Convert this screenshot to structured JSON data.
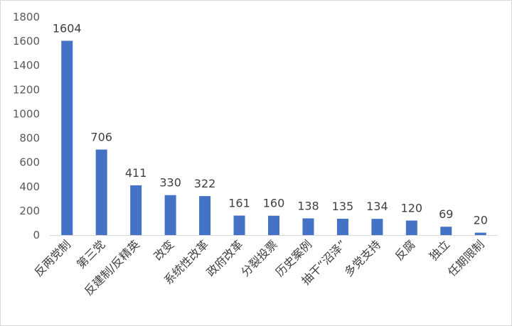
{
  "chart_data": {
    "type": "bar",
    "title": "",
    "xlabel": "",
    "ylabel": "",
    "ylim": [
      0,
      1800
    ],
    "yticks": [
      0,
      200,
      400,
      600,
      800,
      1000,
      1200,
      1400,
      1600,
      1800
    ],
    "grid": false,
    "legend": "none",
    "bar_color": "#4472c4",
    "categories": [
      "反两党制",
      "第三党",
      "反建制/反精英",
      "改变",
      "系统性改革",
      "政府改革",
      "分裂投票",
      "历史案例",
      "抽干“沼泽”",
      "多党支持",
      "反腐",
      "独立",
      "任期限制"
    ],
    "values": [
      1604,
      706,
      411,
      330,
      322,
      161,
      160,
      138,
      135,
      134,
      120,
      69,
      20
    ]
  }
}
